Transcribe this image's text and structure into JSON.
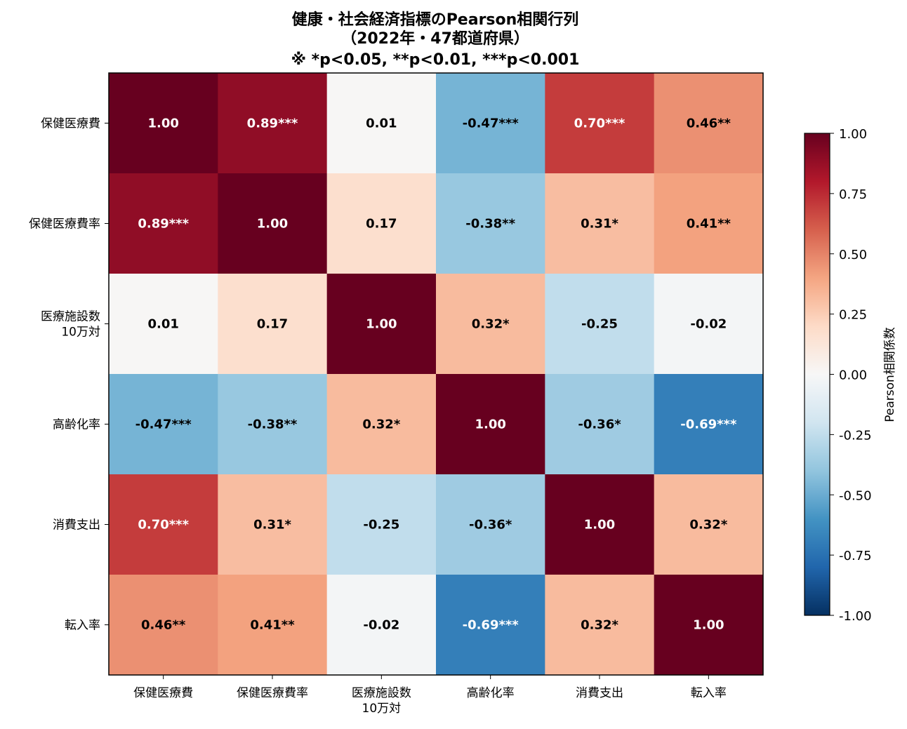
{
  "chart_data": {
    "type": "heatmap",
    "title": [
      "健康・社会経済指標のPearson相関行列",
      "（2022年・47都道府県）",
      "※ *p<0.05, **p<0.01, ***p<0.001"
    ],
    "x_labels": [
      "保健医療費",
      "保健医療費率",
      "医療施設数\n10万対",
      "高齢化率",
      "消費支出",
      "転入率"
    ],
    "y_labels": [
      "保健医療費",
      "保健医療費率",
      "医療施設数\n10万対",
      "高齢化率",
      "消費支出",
      "転入率"
    ],
    "values": [
      [
        1.0,
        0.89,
        0.01,
        -0.47,
        0.7,
        0.46
      ],
      [
        0.89,
        1.0,
        0.17,
        -0.38,
        0.31,
        0.41
      ],
      [
        0.01,
        0.17,
        1.0,
        0.32,
        -0.25,
        -0.02
      ],
      [
        -0.47,
        -0.38,
        0.32,
        1.0,
        -0.36,
        -0.69
      ],
      [
        0.7,
        0.31,
        -0.25,
        -0.36,
        1.0,
        0.32
      ],
      [
        0.46,
        0.41,
        -0.02,
        -0.69,
        0.32,
        1.0
      ]
    ],
    "annotations": [
      [
        "1.00",
        "0.89***",
        "0.01",
        "-0.47***",
        "0.70***",
        "0.46**"
      ],
      [
        "0.89***",
        "1.00",
        "0.17",
        "-0.38**",
        "0.31*",
        "0.41**"
      ],
      [
        "0.01",
        "0.17",
        "1.00",
        "0.32*",
        "-0.25",
        "-0.02"
      ],
      [
        "-0.47***",
        "-0.38**",
        "0.32*",
        "1.00",
        "-0.36*",
        "-0.69***"
      ],
      [
        "0.70***",
        "0.31*",
        "-0.25",
        "-0.36*",
        "1.00",
        "0.32*"
      ],
      [
        "0.46**",
        "0.41**",
        "-0.02",
        "-0.69***",
        "0.32*",
        "1.00"
      ]
    ],
    "colormap": "RdBu_r",
    "vmin": -1.0,
    "vmax": 1.0,
    "colorbar": {
      "label": "Pearson相関係数",
      "ticks": [
        "1.00",
        "0.75",
        "0.50",
        "0.25",
        "0.00",
        "-0.25",
        "-0.50",
        "-0.75",
        "-1.00"
      ],
      "tick_values": [
        1.0,
        0.75,
        0.5,
        0.25,
        0.0,
        -0.25,
        -0.5,
        -0.75,
        -1.0
      ]
    }
  }
}
